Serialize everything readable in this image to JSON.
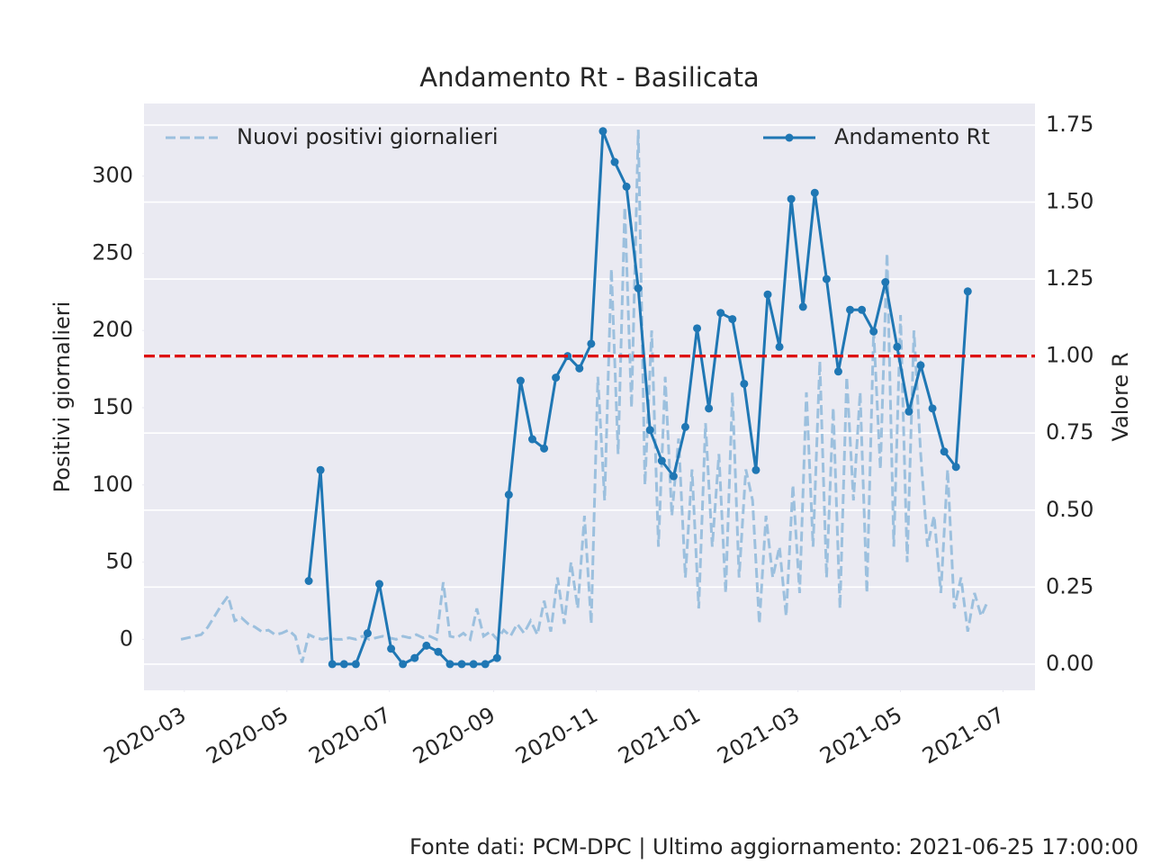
{
  "chart_data": {
    "type": "line",
    "title": "Andamento Rt - Basilicata",
    "ylabel": "Positivi giornalieri",
    "y2label": "Valore R",
    "source": "Fonte dati: PCM-DPC | Ultimo aggiornamento: 2021-06-25 17:00:00",
    "xlim": [
      "2020-02-06",
      "2021-07-20"
    ],
    "xticks": [
      "2020-03",
      "2020-05",
      "2020-07",
      "2020-09",
      "2020-11",
      "2021-01",
      "2021-03",
      "2021-05",
      "2021-07"
    ],
    "ylim": [
      -33,
      347
    ],
    "yticks": [
      0,
      50,
      100,
      150,
      200,
      250,
      300
    ],
    "y2lim": [
      -0.085,
      1.82
    ],
    "y2ticks": [
      {
        "value": 0,
        "label": "0.00"
      },
      {
        "value": 0.25,
        "label": "0.25"
      },
      {
        "value": 0.5,
        "label": "0.50"
      },
      {
        "value": 0.75,
        "label": "0.75"
      },
      {
        "value": 1,
        "label": "1.00"
      },
      {
        "value": 1.25,
        "label": "1.25"
      },
      {
        "value": 1.5,
        "label": "1.50"
      },
      {
        "value": 1.75,
        "label": "1.75"
      }
    ],
    "grid": "y2",
    "hline": {
      "value": 1,
      "axis": "y2",
      "color": "#dd1111"
    },
    "series": [
      {
        "name": "Nuovi positivi giornalieri",
        "color": "#9cc0de",
        "dashed": true,
        "axis": "y",
        "legend_loc": "upper left",
        "x": [
          "2020-02-28",
          "2020-03-03",
          "2020-03-07",
          "2020-03-11",
          "2020-03-15",
          "2020-03-19",
          "2020-03-23",
          "2020-03-27",
          "2020-03-31",
          "2020-04-04",
          "2020-04-08",
          "2020-04-12",
          "2020-04-16",
          "2020-04-20",
          "2020-04-24",
          "2020-04-28",
          "2020-05-02",
          "2020-05-06",
          "2020-05-10",
          "2020-05-14",
          "2020-05-18",
          "2020-05-22",
          "2020-05-26",
          "2020-05-30",
          "2020-06-03",
          "2020-06-07",
          "2020-06-11",
          "2020-06-15",
          "2020-06-19",
          "2020-06-23",
          "2020-06-27",
          "2020-07-01",
          "2020-07-05",
          "2020-07-09",
          "2020-07-13",
          "2020-07-17",
          "2020-07-21",
          "2020-07-25",
          "2020-07-29",
          "2020-08-02",
          "2020-08-06",
          "2020-08-10",
          "2020-08-14",
          "2020-08-18",
          "2020-08-22",
          "2020-08-26",
          "2020-08-30",
          "2020-09-03",
          "2020-09-07",
          "2020-09-11",
          "2020-09-15",
          "2020-09-19",
          "2020-09-23",
          "2020-09-27",
          "2020-10-01",
          "2020-10-05",
          "2020-10-09",
          "2020-10-13",
          "2020-10-17",
          "2020-10-21",
          "2020-10-25",
          "2020-10-29",
          "2020-11-02",
          "2020-11-06",
          "2020-11-10",
          "2020-11-14",
          "2020-11-18",
          "2020-11-22",
          "2020-11-26",
          "2020-11-30",
          "2020-12-04",
          "2020-12-08",
          "2020-12-12",
          "2020-12-16",
          "2020-12-20",
          "2020-12-24",
          "2020-12-28",
          "2021-01-01",
          "2021-01-05",
          "2021-01-09",
          "2021-01-13",
          "2021-01-17",
          "2021-01-21",
          "2021-01-25",
          "2021-01-29",
          "2021-02-02",
          "2021-02-06",
          "2021-02-10",
          "2021-02-14",
          "2021-02-18",
          "2021-02-22",
          "2021-02-26",
          "2021-03-02",
          "2021-03-06",
          "2021-03-10",
          "2021-03-14",
          "2021-03-18",
          "2021-03-22",
          "2021-03-26",
          "2021-03-30",
          "2021-04-03",
          "2021-04-07",
          "2021-04-11",
          "2021-04-15",
          "2021-04-19",
          "2021-04-23",
          "2021-04-27",
          "2021-05-01",
          "2021-05-05",
          "2021-05-09",
          "2021-05-13",
          "2021-05-17",
          "2021-05-21",
          "2021-05-25",
          "2021-05-29",
          "2021-06-02",
          "2021-06-06",
          "2021-06-10",
          "2021-06-14",
          "2021-06-18",
          "2021-06-22"
        ],
        "values": [
          0,
          1,
          2,
          3,
          8,
          15,
          22,
          28,
          12,
          14,
          10,
          8,
          5,
          6,
          3,
          4,
          6,
          2,
          -15,
          3,
          1,
          0,
          1,
          0,
          0,
          1,
          0,
          2,
          0,
          1,
          2,
          1,
          0,
          2,
          1,
          3,
          1,
          2,
          0,
          37,
          2,
          1,
          4,
          0,
          20,
          2,
          5,
          0,
          6,
          2,
          10,
          4,
          12,
          3,
          25,
          5,
          40,
          10,
          50,
          20,
          80,
          10,
          170,
          90,
          240,
          120,
          280,
          150,
          330,
          100,
          200,
          60,
          170,
          80,
          130,
          40,
          110,
          20,
          140,
          60,
          120,
          30,
          160,
          40,
          110,
          90,
          10,
          80,
          40,
          60,
          15,
          100,
          30,
          160,
          60,
          180,
          40,
          150,
          20,
          170,
          90,
          160,
          30,
          200,
          110,
          250,
          60,
          210,
          50,
          200,
          120,
          60,
          80,
          30,
          110,
          20,
          40,
          5,
          30,
          15,
          25
        ]
      },
      {
        "name": "Andamento Rt",
        "color": "#1f77b4",
        "dashed": false,
        "markers": true,
        "axis": "y2",
        "legend_loc": "upper right",
        "x": [
          "2020-05-14",
          "2020-05-21",
          "2020-05-28",
          "2020-06-04",
          "2020-06-11",
          "2020-06-18",
          "2020-06-25",
          "2020-07-02",
          "2020-07-09",
          "2020-07-16",
          "2020-07-23",
          "2020-07-30",
          "2020-08-06",
          "2020-08-13",
          "2020-08-20",
          "2020-08-27",
          "2020-09-03",
          "2020-09-10",
          "2020-09-17",
          "2020-09-24",
          "2020-10-01",
          "2020-10-08",
          "2020-10-15",
          "2020-10-22",
          "2020-10-29",
          "2020-11-05",
          "2020-11-12",
          "2020-11-19",
          "2020-11-26",
          "2020-12-03",
          "2020-12-10",
          "2020-12-17",
          "2020-12-24",
          "2020-12-31",
          "2021-01-07",
          "2021-01-14",
          "2021-01-21",
          "2021-01-28",
          "2021-02-04",
          "2021-02-11",
          "2021-02-18",
          "2021-02-25",
          "2021-03-04",
          "2021-03-11",
          "2021-03-18",
          "2021-03-25",
          "2021-04-01",
          "2021-04-08",
          "2021-04-15",
          "2021-04-22",
          "2021-04-29",
          "2021-05-06",
          "2021-05-13",
          "2021-05-20",
          "2021-05-27",
          "2021-06-03",
          "2021-06-10"
        ],
        "values": [
          0.27,
          0.63,
          0,
          0,
          0,
          0.1,
          0.26,
          0.05,
          0,
          0.02,
          0.06,
          0.04,
          0,
          0,
          0,
          0,
          0.02,
          0.55,
          0.92,
          0.73,
          0.7,
          0.93,
          1.0,
          0.96,
          1.04,
          1.73,
          1.63,
          1.55,
          1.22,
          0.76,
          0.66,
          0.61,
          0.77,
          1.09,
          0.83,
          1.14,
          1.12,
          0.91,
          0.63,
          1.2,
          1.03,
          1.51,
          1.16,
          1.53,
          1.25,
          0.95,
          1.15,
          1.15,
          1.08,
          1.24,
          1.03,
          0.82,
          0.97,
          0.83,
          0.69,
          0.64,
          1.21
        ]
      }
    ]
  }
}
